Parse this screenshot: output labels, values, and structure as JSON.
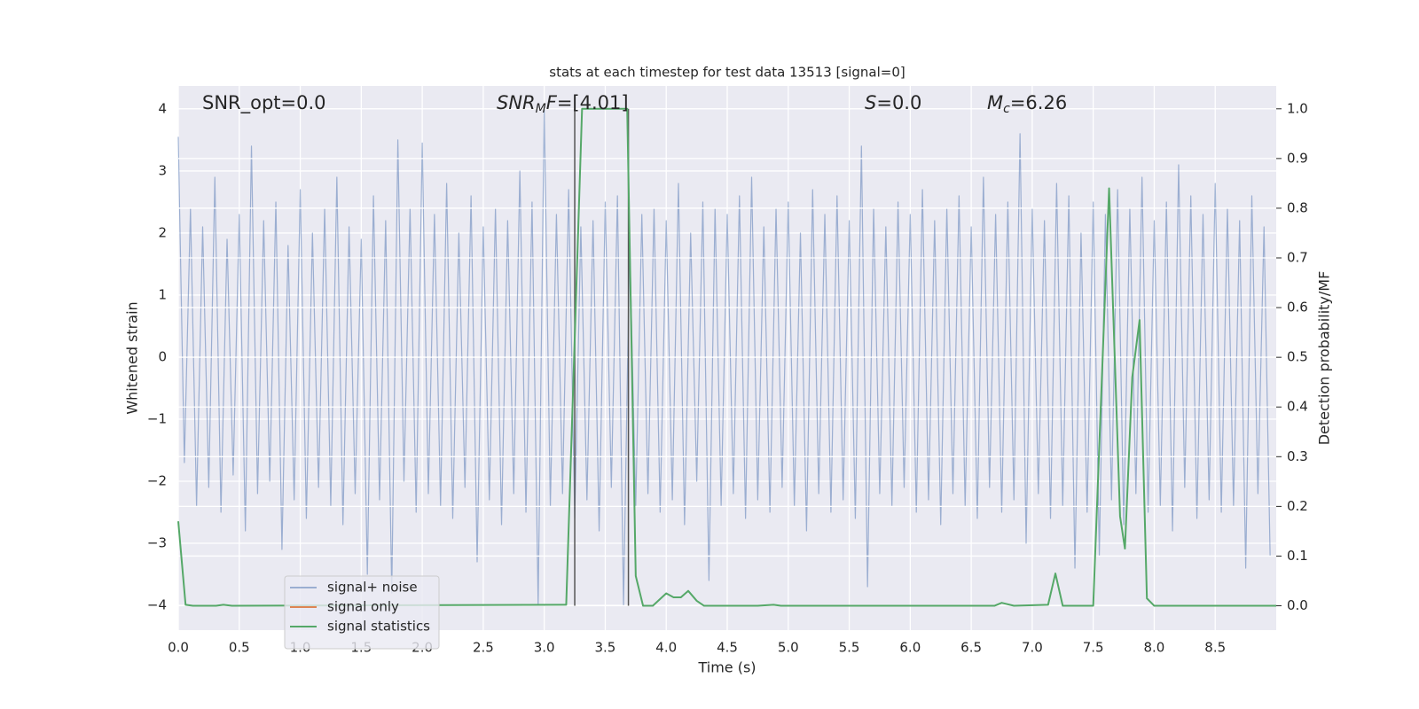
{
  "chart_data": {
    "type": "line",
    "title": "stats at each timestep for test data 13513 [signal=0]",
    "xlabel": "Time (s)",
    "ylabel": "Whitened strain",
    "y2label": "Detection probability/MF",
    "xlim": [
      0,
      9.0
    ],
    "ylim": [
      -4.4,
      4.37
    ],
    "y2lim": [
      -0.049,
      1.046
    ],
    "xticks": [
      {
        "value": 0,
        "label": "0.0"
      },
      {
        "value": 0.5,
        "label": "0.5"
      },
      {
        "value": 1,
        "label": "1.0"
      },
      {
        "value": 1.5,
        "label": "1.5"
      },
      {
        "value": 2,
        "label": "2.0"
      },
      {
        "value": 2.5,
        "label": "2.5"
      },
      {
        "value": 3,
        "label": "3.0"
      },
      {
        "value": 3.5,
        "label": "3.5"
      },
      {
        "value": 4,
        "label": "4.0"
      },
      {
        "value": 4.5,
        "label": "4.5"
      },
      {
        "value": 5,
        "label": "5.0"
      },
      {
        "value": 5.5,
        "label": "5.5"
      },
      {
        "value": 6,
        "label": "6.0"
      },
      {
        "value": 6.5,
        "label": "6.5"
      },
      {
        "value": 7,
        "label": "7.0"
      },
      {
        "value": 7.5,
        "label": "7.5"
      },
      {
        "value": 8,
        "label": "8.0"
      },
      {
        "value": 8.5,
        "label": "8.5"
      }
    ],
    "yticks": [
      {
        "value": -4,
        "label": "−4"
      },
      {
        "value": -3,
        "label": "−3"
      },
      {
        "value": -2,
        "label": "−2"
      },
      {
        "value": -1,
        "label": "−1"
      },
      0,
      1,
      2,
      3,
      4
    ],
    "y2ticks": [
      {
        "value": 0,
        "label": "0.0"
      },
      {
        "value": 0.1,
        "label": "0.1"
      },
      {
        "value": 0.2,
        "label": "0.2"
      },
      {
        "value": 0.3,
        "label": "0.3"
      },
      {
        "value": 0.4,
        "label": "0.4"
      },
      {
        "value": 0.5,
        "label": "0.5"
      },
      {
        "value": 0.6,
        "label": "0.6"
      },
      {
        "value": 0.7,
        "label": "0.7"
      },
      {
        "value": 0.8,
        "label": "0.8"
      },
      {
        "value": 0.9,
        "label": "0.9"
      },
      {
        "value": 1,
        "label": "1.0"
      }
    ],
    "grid": true,
    "legend": "lower left",
    "vlines": [
      3.25,
      3.69
    ],
    "vline_color": "#555555",
    "annotations": [
      [
        {
          "text": "SNR_opt=0.0"
        }
      ],
      [
        {
          "italic": "SNR"
        },
        {
          "sub": "M"
        },
        {
          "italic": "F"
        },
        {
          "text": "=[4.01]"
        }
      ],
      [
        {
          "italic": "S"
        },
        {
          "text": "=0.0"
        }
      ],
      [
        {
          "italic": "M"
        },
        {
          "sub": "c"
        },
        {
          "text": "=6.26"
        }
      ]
    ],
    "series": [
      {
        "name": "signal+ noise",
        "color": "#4c72b0",
        "opacity": 0.5,
        "x": [
          0,
          0.05,
          0.1,
          0.15,
          0.2,
          0.25,
          0.3,
          0.35,
          0.4,
          0.45,
          0.5,
          0.55,
          0.6,
          0.65,
          0.7,
          0.75,
          0.8,
          0.85,
          0.9,
          0.95,
          1,
          1.05,
          1.1,
          1.15,
          1.2,
          1.25,
          1.3,
          1.35,
          1.4,
          1.45,
          1.5,
          1.55,
          1.6,
          1.65,
          1.7,
          1.75,
          1.8,
          1.85,
          1.9,
          1.95,
          2,
          2.05,
          2.1,
          2.15,
          2.2,
          2.25,
          2.3,
          2.35,
          2.4,
          2.45,
          2.5,
          2.55,
          2.6,
          2.65,
          2.7,
          2.75,
          2.8,
          2.85,
          2.9,
          2.95,
          3,
          3.05,
          3.1,
          3.15,
          3.2,
          3.25,
          3.3,
          3.35,
          3.4,
          3.45,
          3.5,
          3.55,
          3.6,
          3.65,
          3.7,
          3.75,
          3.8,
          3.85,
          3.9,
          3.95,
          4,
          4.05,
          4.1,
          4.15,
          4.2,
          4.25,
          4.3,
          4.35,
          4.4,
          4.45,
          4.5,
          4.55,
          4.6,
          4.65,
          4.7,
          4.75,
          4.8,
          4.85,
          4.9,
          4.95,
          5,
          5.05,
          5.1,
          5.15,
          5.2,
          5.25,
          5.3,
          5.35,
          5.4,
          5.45,
          5.5,
          5.55,
          5.6,
          5.65,
          5.7,
          5.75,
          5.8,
          5.85,
          5.9,
          5.95,
          6,
          6.05,
          6.1,
          6.15,
          6.2,
          6.25,
          6.3,
          6.35,
          6.4,
          6.45,
          6.5,
          6.55,
          6.6,
          6.65,
          6.7,
          6.75,
          6.8,
          6.85,
          6.9,
          6.95,
          7,
          7.05,
          7.1,
          7.15,
          7.2,
          7.25,
          7.3,
          7.35,
          7.4,
          7.45,
          7.5,
          7.55,
          7.6,
          7.65,
          7.7,
          7.75,
          7.8,
          7.85,
          7.9,
          7.95,
          8,
          8.05,
          8.1,
          8.15,
          8.2,
          8.25,
          8.3,
          8.35,
          8.4,
          8.45,
          8.5,
          8.55,
          8.6,
          8.65,
          8.7,
          8.75,
          8.8,
          8.85,
          8.9,
          8.95
        ],
        "values": [
          3.55,
          -1.7,
          2.4,
          -2.4,
          2.1,
          -2.1,
          2.9,
          -2.5,
          1.9,
          -1.9,
          2.3,
          -2.8,
          3.4,
          -2.2,
          2.2,
          -2.0,
          2.5,
          -3.1,
          1.8,
          -2.3,
          2.7,
          -2.6,
          2.0,
          -2.1,
          2.4,
          -2.4,
          2.9,
          -2.7,
          2.1,
          -2.2,
          1.9,
          -3.5,
          2.6,
          -2.3,
          2.2,
          -3.8,
          3.5,
          -2.0,
          2.4,
          -2.5,
          3.45,
          -2.2,
          2.3,
          -2.4,
          2.8,
          -2.6,
          2.0,
          -2.1,
          2.6,
          -3.3,
          2.1,
          -2.3,
          2.4,
          -2.7,
          2.2,
          -2.2,
          3.0,
          -2.5,
          2.5,
          -4.0,
          4.0,
          -2.4,
          2.3,
          -2.2,
          2.7,
          -2.6,
          2.1,
          -2.3,
          2.2,
          -2.8,
          2.5,
          -2.1,
          2.6,
          -4.0,
          1.9,
          -2.4,
          2.3,
          -2.2,
          2.4,
          -2.5,
          2.2,
          -2.3,
          2.8,
          -2.7,
          2.0,
          -2.0,
          2.5,
          -3.6,
          2.4,
          -2.4,
          2.3,
          -2.2,
          2.6,
          -2.6,
          2.9,
          -2.3,
          2.1,
          -2.5,
          2.4,
          -2.1,
          2.5,
          -2.4,
          2.0,
          -2.8,
          2.7,
          -2.2,
          2.3,
          -2.5,
          2.6,
          -2.3,
          2.2,
          -2.6,
          3.4,
          -3.7,
          2.4,
          -2.2,
          2.1,
          -2.4,
          2.5,
          -2.1,
          2.3,
          -2.5,
          2.7,
          -2.3,
          2.2,
          -2.7,
          2.4,
          -2.2,
          2.6,
          -2.4,
          2.1,
          -2.6,
          2.9,
          -2.1,
          2.3,
          -2.5,
          2.5,
          -2.3,
          3.6,
          -3.0,
          2.4,
          -2.2,
          2.2,
          -2.6,
          2.8,
          -2.4,
          2.6,
          -3.4,
          2.0,
          -2.5,
          2.5,
          -3.2,
          2.3,
          -2.3,
          2.7,
          -2.7,
          2.4,
          -2.2,
          2.9,
          -2.5,
          2.2,
          -2.4,
          2.5,
          -2.8,
          3.1,
          -2.1,
          2.6,
          -2.6,
          2.3,
          -2.3,
          2.8,
          -2.5,
          2.4,
          -2.4,
          2.2,
          -3.4,
          2.6,
          -2.2,
          2.1,
          -3.2
        ]
      },
      {
        "name": "signal only",
        "color": "#dd8452",
        "x": [],
        "values": []
      },
      {
        "name": "signal statistics",
        "color": "#55a868",
        "axis": "y2",
        "x": [
          0,
          0.06,
          0.12,
          0.31,
          0.37,
          0.44,
          3.18,
          3.31,
          3.68,
          3.75,
          3.81,
          3.89,
          4.0,
          4.06,
          4.12,
          4.18,
          4.25,
          4.31,
          4.75,
          4.88,
          4.94,
          6.69,
          6.75,
          6.85,
          7.13,
          7.19,
          7.25,
          7.5,
          7.63,
          7.72,
          7.76,
          7.82,
          7.88,
          7.94,
          8.0,
          9.0
        ],
        "values": [
          0.17,
          0.002,
          0.0,
          0.0,
          0.002,
          0.0,
          0.002,
          1.0,
          1.0,
          0.06,
          0.0,
          0.0,
          0.025,
          0.017,
          0.017,
          0.03,
          0.01,
          0.0,
          0.0,
          0.002,
          0.0,
          0.0,
          0.006,
          0.0,
          0.002,
          0.065,
          0.0,
          0.0,
          0.84,
          0.18,
          0.115,
          0.46,
          0.575,
          0.015,
          0.0,
          0.0
        ]
      }
    ]
  }
}
